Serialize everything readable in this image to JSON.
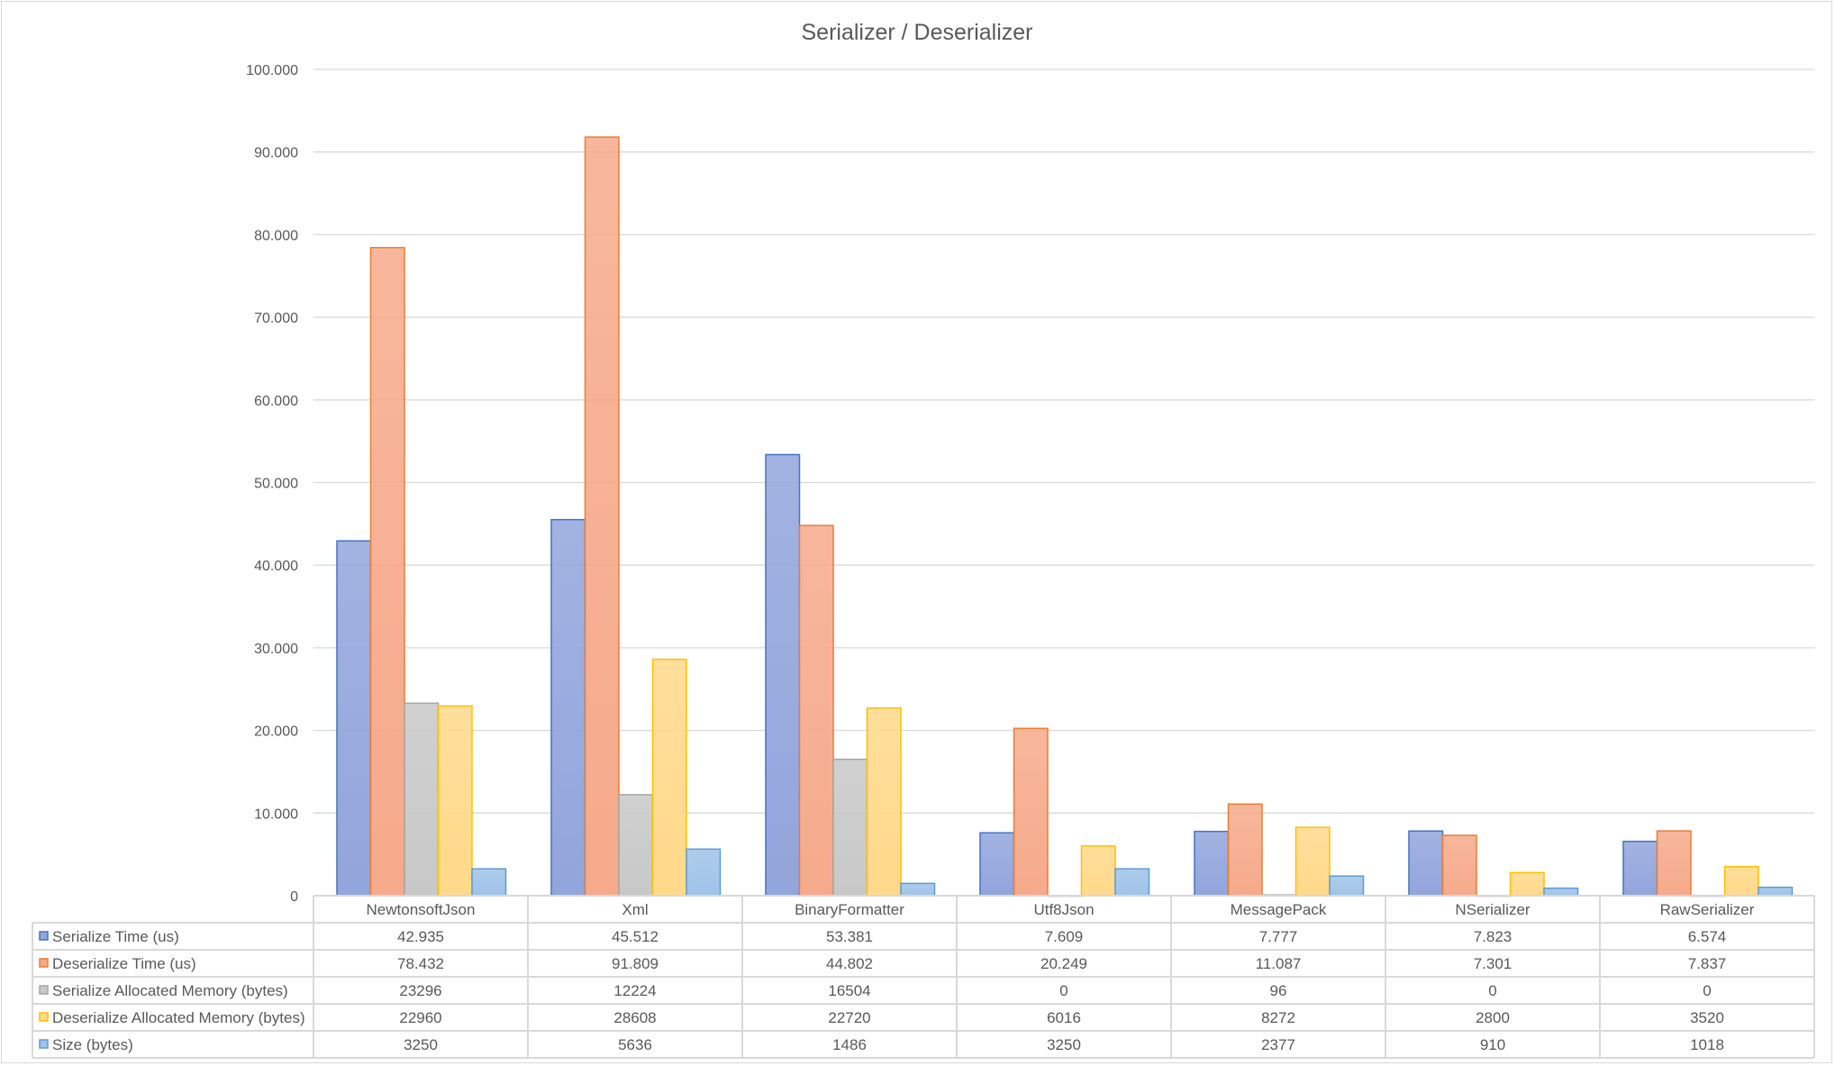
{
  "chart_data": {
    "type": "bar",
    "title": "Serializer  / Deserializer",
    "xlabel": "",
    "ylabel": "",
    "ylim": [
      0,
      100000
    ],
    "y_ticks": [
      0,
      10000,
      20000,
      30000,
      40000,
      50000,
      60000,
      70000,
      80000,
      90000,
      100000
    ],
    "y_tick_labels": [
      "0",
      "10.000",
      "20.000",
      "30.000",
      "40.000",
      "50.000",
      "60.000",
      "70.000",
      "80.000",
      "90.000",
      "100.000"
    ],
    "grid": true,
    "legend": "data-table-bottom",
    "categories": [
      "NewtonsoftJson",
      "Xml",
      "BinaryFormatter",
      "Utf8Json",
      "MessagePack",
      "NSerializer",
      "RawSerializer"
    ],
    "series": [
      {
        "name": "Serialize Time (us)",
        "color": "#4472C4",
        "fill": "#92A5DC",
        "values": [
          42935,
          45512,
          53381,
          7609,
          7777,
          7823,
          6574
        ],
        "labels": [
          "42.935",
          "45.512",
          "53.381",
          "7.609",
          "7.777",
          "7.823",
          "6.574"
        ]
      },
      {
        "name": "Deserialize Time (us)",
        "color": "#ED7D31",
        "fill": "#F6AA8B",
        "values": [
          78432,
          91809,
          44802,
          20249,
          11087,
          7301,
          7837
        ],
        "labels": [
          "78.432",
          "91.809",
          "44.802",
          "20.249",
          "11.087",
          "7.301",
          "7.837"
        ]
      },
      {
        "name": "Serialize Allocated Memory (bytes)",
        "color": "#A5A5A5",
        "fill": "#C8C8C8",
        "values": [
          23296,
          12224,
          16504,
          0,
          96,
          0,
          0
        ],
        "labels": [
          "23296",
          "12224",
          "16504",
          "0",
          "96",
          "0",
          "0"
        ]
      },
      {
        "name": "Deserialize Allocated Memory (bytes)",
        "color": "#FFC000",
        "fill": "#FFD98A",
        "values": [
          22960,
          28608,
          22720,
          6016,
          8272,
          2800,
          3520
        ],
        "labels": [
          "22960",
          "28608",
          "22720",
          "6016",
          "8272",
          "2800",
          "3520"
        ]
      },
      {
        "name": "Size (bytes)",
        "color": "#5B9BD5",
        "fill": "#A0C3E9",
        "values": [
          3250,
          5636,
          1486,
          3250,
          2377,
          910,
          1018
        ],
        "labels": [
          "3250",
          "5636",
          "1486",
          "3250",
          "2377",
          "910",
          "1018"
        ]
      }
    ]
  }
}
